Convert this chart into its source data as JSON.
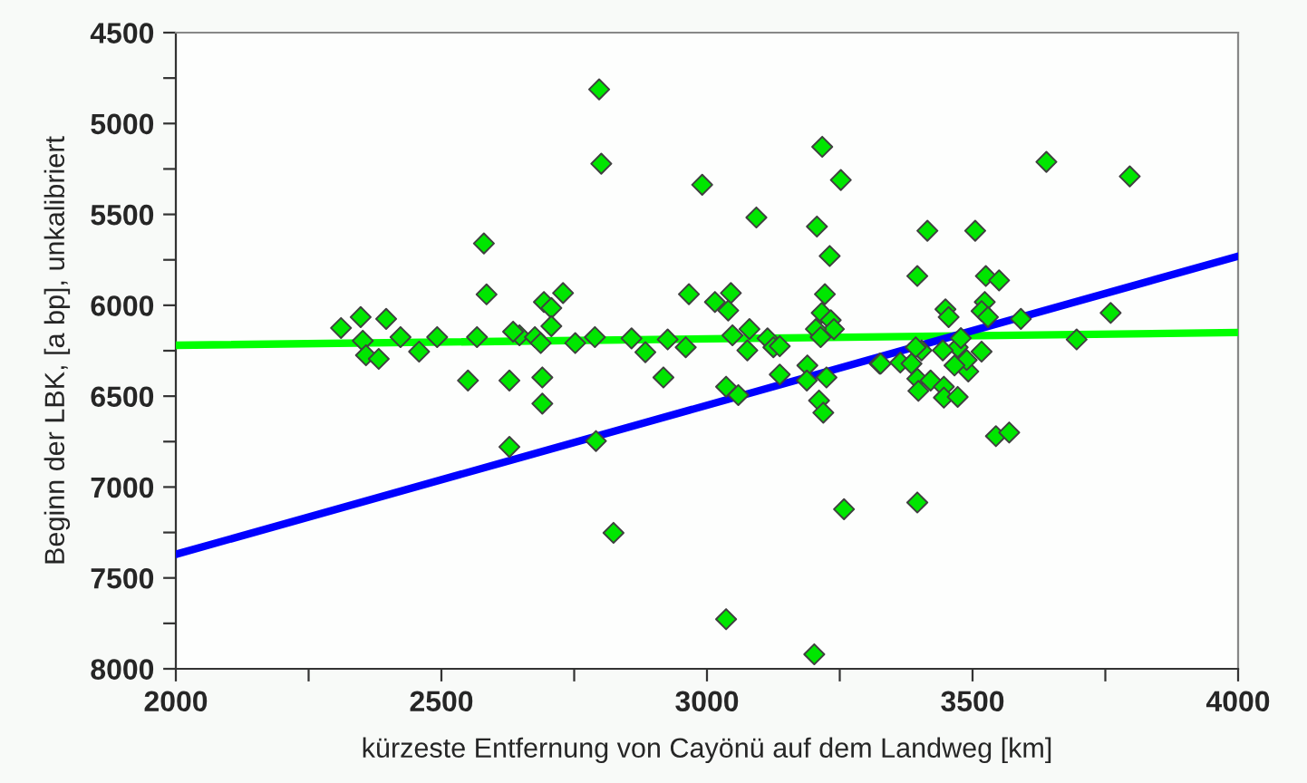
{
  "chart_data": {
    "type": "scatter",
    "xlabel": "kürzeste Entfernung von Cayönü auf dem Landweg [km]",
    "ylabel": "Beginn der LBK, [a bp], unkalibriert",
    "xlim": [
      2000,
      4000
    ],
    "xticks": [
      2000,
      {
        "value": 2250,
        "label": null
      },
      2500,
      {
        "value": 2750,
        "label": null
      },
      3000,
      {
        "value": 3250,
        "label": null
      },
      3500,
      {
        "value": 3750,
        "label": null
      },
      4000
    ],
    "ylim": [
      8000,
      4500
    ],
    "yticks": [
      4500,
      {
        "value": 4750,
        "label": null
      },
      5000,
      {
        "value": 5250,
        "label": null
      },
      5500,
      {
        "value": 5750,
        "label": null
      },
      6000,
      {
        "value": 6250,
        "label": null
      },
      6500,
      {
        "value": 6750,
        "label": null
      },
      7000,
      {
        "value": 7250,
        "label": null
      },
      7500,
      {
        "value": 7750,
        "label": null
      },
      8000
    ],
    "grid": false,
    "legend": false,
    "series": [
      {
        "type": "line",
        "color": "#00ff00",
        "x": [
          2000,
          4000
        ],
        "values": [
          6220,
          6150
        ],
        "marker": "none",
        "line_style": "solid"
      },
      {
        "type": "line",
        "color": "#0000ff",
        "x": [
          2000,
          4000
        ],
        "values": [
          7370,
          5730
        ],
        "marker": "none",
        "line_style": "solid"
      },
      {
        "color": "#00e600",
        "marker": "diamond",
        "x": [
          2797,
          2801,
          2991,
          3093,
          3207,
          3231,
          3217,
          3252,
          3639,
          3796,
          3415,
          3505,
          3396,
          3525,
          3550,
          3760,
          3696,
          3591,
          3449,
          3455,
          3523,
          3517,
          3529,
          3325,
          3364,
          3385,
          3396,
          3398,
          3421,
          3446,
          3446,
          3472,
          3492,
          3489,
          3466,
          3472,
          3517,
          3444,
          3404,
          3393,
          3478,
          3544,
          3569,
          3396,
          2693,
          2707,
          2729,
          2707,
          2966,
          3015,
          3045,
          3040,
          3080,
          3222,
          3216,
          3233,
          3239,
          3205,
          3214,
          2628,
          2690,
          2690,
          2647,
          2676,
          2687,
          2752,
          2789,
          2858,
          2884,
          2926,
          2960,
          2918,
          3048,
          3076,
          3114,
          3125,
          3137,
          3137,
          3036,
          3059,
          3189,
          3188,
          3211,
          3219,
          3225,
          3327,
          2628,
          2791,
          3258,
          2824,
          3036,
          3202,
          2311,
          2348,
          2352,
          2358,
          2382,
          2396,
          2423,
          2458,
          2492,
          2550,
          2567,
          2585,
          2580,
          2635
        ],
        "values": [
          4812,
          5221,
          5337,
          5517,
          5567,
          5729,
          5128,
          5311,
          5211,
          5291,
          5590,
          5590,
          5839,
          5839,
          5863,
          6042,
          6188,
          6075,
          6022,
          6065,
          5982,
          6032,
          6065,
          6321,
          6315,
          6321,
          6404,
          6471,
          6414,
          6448,
          6508,
          6504,
          6364,
          6301,
          6331,
          6231,
          6255,
          6248,
          6248,
          6231,
          6181,
          6720,
          6700,
          7085,
          5982,
          6015,
          5933,
          6115,
          5939,
          5982,
          5933,
          6029,
          6131,
          5939,
          6042,
          6082,
          6131,
          6131,
          6175,
          6414,
          6397,
          6541,
          6165,
          6175,
          6208,
          6208,
          6175,
          6182,
          6258,
          6188,
          6231,
          6397,
          6165,
          6248,
          6182,
          6231,
          6225,
          6381,
          6448,
          6494,
          6331,
          6414,
          6524,
          6591,
          6397,
          6321,
          6779,
          6747,
          7122,
          7252,
          7727,
          7920,
          6125,
          6065,
          6195,
          6275,
          6295,
          6075,
          6175,
          6255,
          6175,
          6414,
          6175,
          5940,
          5660,
          6145
        ]
      }
    ]
  }
}
